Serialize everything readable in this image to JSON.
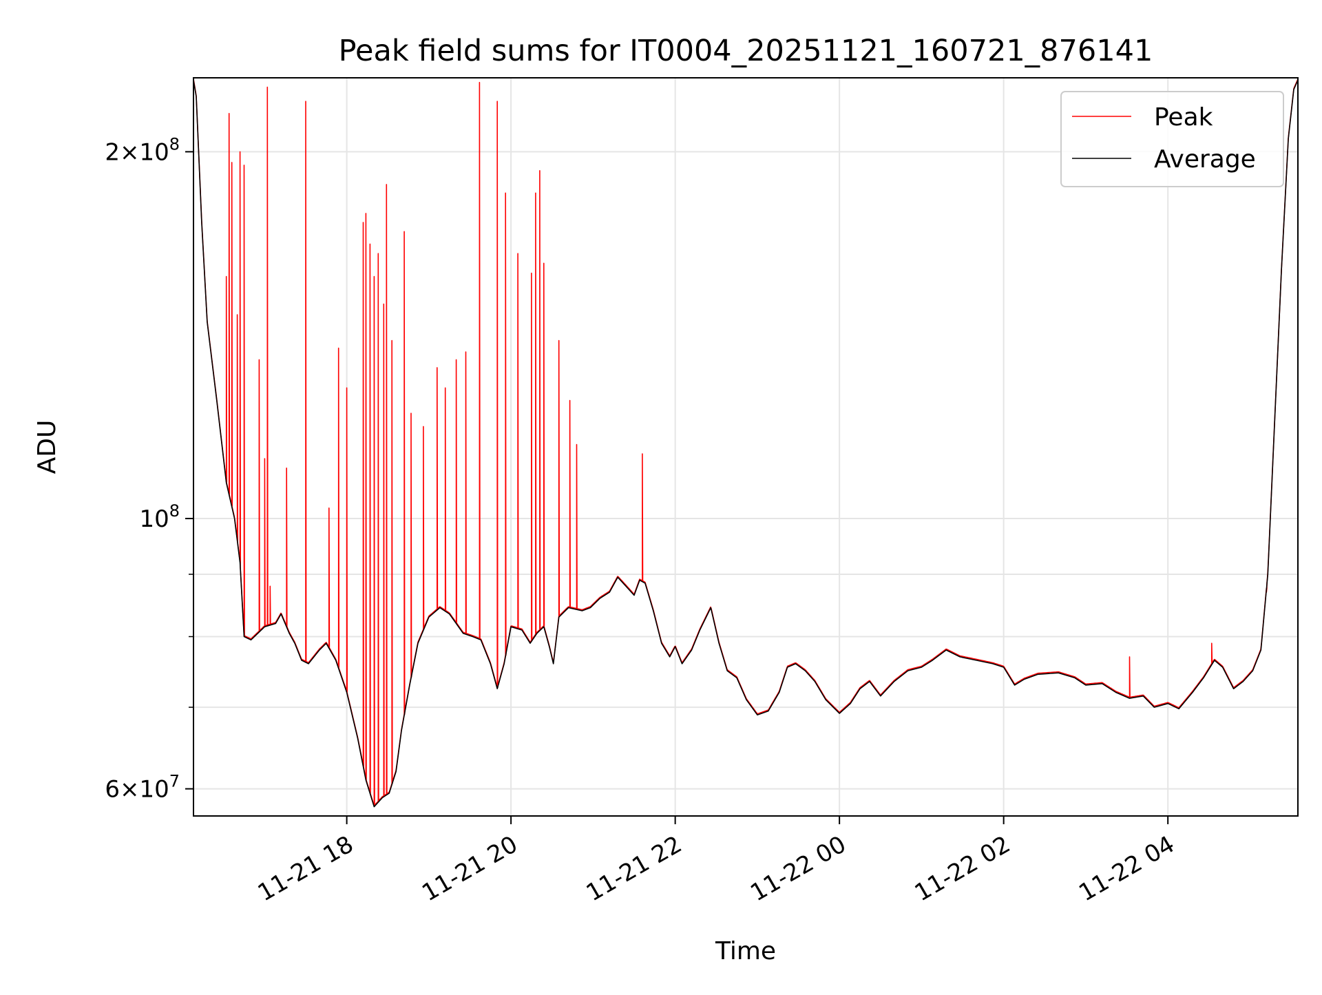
{
  "chart_data": {
    "type": "line",
    "title": "Peak field sums for IT0004_20251121_160721_876141",
    "xlabel": "Time",
    "ylabel": "ADU",
    "yscale": "log",
    "grid": true,
    "legend": {
      "placement": "top-right"
    },
    "x_range": [
      "2025-11-21 16:08",
      "2025-11-22 05:35"
    ],
    "ylim": [
      57000000,
      230000000
    ],
    "x_ticks": [
      {
        "label": "11-21 18",
        "value": "2025-11-21 18:00"
      },
      {
        "label": "11-21 20",
        "value": "2025-11-21 20:00"
      },
      {
        "label": "11-21 22",
        "value": "2025-11-21 22:00"
      },
      {
        "label": "11-22 00",
        "value": "2025-11-22 00:00"
      },
      {
        "label": "11-22 02",
        "value": "2025-11-22 02:00"
      },
      {
        "label": "11-22 04",
        "value": "2025-11-22 04:00"
      }
    ],
    "y_ticks": [
      {
        "value": 200000000,
        "mant": "2",
        "exp": "8"
      },
      {
        "value": 100000000,
        "mant": "",
        "exp": "8"
      },
      {
        "value": 60000000,
        "mant": "6",
        "exp": "7"
      }
    ],
    "y_minor_gridlines": [
      70000000,
      80000000,
      90000000
    ],
    "series": [
      {
        "name": "Peak",
        "color": "#ff0000",
        "spikes": [
          [
            "2025-11-21 16:32",
            158000000
          ],
          [
            "2025-11-21 16:34",
            215000000
          ],
          [
            "2025-11-21 16:36",
            196000000
          ],
          [
            "2025-11-21 16:40",
            147000000
          ],
          [
            "2025-11-21 16:42",
            200000000
          ],
          [
            "2025-11-21 16:45",
            195000000
          ],
          [
            "2025-11-21 16:56",
            135000000
          ],
          [
            "2025-11-21 17:00",
            112000000
          ],
          [
            "2025-11-21 17:02",
            226000000
          ],
          [
            "2025-11-21 17:04",
            88000000
          ],
          [
            "2025-11-21 17:16",
            110000000
          ],
          [
            "2025-11-21 17:30",
            220000000
          ],
          [
            "2025-11-21 17:47",
            102000000
          ],
          [
            "2025-11-21 17:54",
            138000000
          ],
          [
            "2025-11-21 18:00",
            128000000
          ],
          [
            "2025-11-21 18:12",
            175000000
          ],
          [
            "2025-11-21 18:14",
            178000000
          ],
          [
            "2025-11-21 18:17",
            168000000
          ],
          [
            "2025-11-21 18:20",
            158000000
          ],
          [
            "2025-11-21 18:23",
            165000000
          ],
          [
            "2025-11-21 18:27",
            150000000
          ],
          [
            "2025-11-21 18:29",
            188000000
          ],
          [
            "2025-11-21 18:33",
            140000000
          ],
          [
            "2025-11-21 18:42",
            172000000
          ],
          [
            "2025-11-21 18:47",
            122000000
          ],
          [
            "2025-11-21 18:56",
            119000000
          ],
          [
            "2025-11-21 19:06",
            133000000
          ],
          [
            "2025-11-21 19:12",
            128000000
          ],
          [
            "2025-11-21 19:20",
            135000000
          ],
          [
            "2025-11-21 19:27",
            137000000
          ],
          [
            "2025-11-21 19:37",
            228000000
          ],
          [
            "2025-11-21 19:50",
            220000000
          ],
          [
            "2025-11-21 19:56",
            185000000
          ],
          [
            "2025-11-21 20:05",
            165000000
          ],
          [
            "2025-11-21 20:15",
            159000000
          ],
          [
            "2025-11-21 20:18",
            185000000
          ],
          [
            "2025-11-21 20:21",
            193000000
          ],
          [
            "2025-11-21 20:24",
            162000000
          ],
          [
            "2025-11-21 20:35",
            140000000
          ],
          [
            "2025-11-21 20:43",
            125000000
          ],
          [
            "2025-11-21 20:48",
            115000000
          ],
          [
            "2025-11-21 21:36",
            113000000
          ],
          [
            "2025-11-22 03:32",
            77000000
          ],
          [
            "2025-11-22 04:32",
            79000000
          ],
          [
            "2025-11-22 05:12",
            87000000
          ]
        ]
      },
      {
        "name": "Average",
        "color": "#000000",
        "points": [
          [
            "2025-11-21 16:08",
            229000000
          ],
          [
            "2025-11-21 16:10",
            222000000
          ],
          [
            "2025-11-21 16:14",
            175000000
          ],
          [
            "2025-11-21 16:18",
            145000000
          ],
          [
            "2025-11-21 16:25",
            125000000
          ],
          [
            "2025-11-21 16:32",
            107000000
          ],
          [
            "2025-11-21 16:38",
            100000000
          ],
          [
            "2025-11-21 16:42",
            92000000
          ],
          [
            "2025-11-21 16:45",
            80000000
          ],
          [
            "2025-11-21 16:50",
            79500000
          ],
          [
            "2025-11-21 17:00",
            81500000
          ],
          [
            "2025-11-21 17:08",
            82000000
          ],
          [
            "2025-11-21 17:12",
            83500000
          ],
          [
            "2025-11-21 17:18",
            80500000
          ],
          [
            "2025-11-21 17:22",
            79000000
          ],
          [
            "2025-11-21 17:27",
            76500000
          ],
          [
            "2025-11-21 17:32",
            76000000
          ],
          [
            "2025-11-21 17:40",
            78000000
          ],
          [
            "2025-11-21 17:45",
            79000000
          ],
          [
            "2025-11-21 17:52",
            76500000
          ],
          [
            "2025-11-21 18:00",
            72000000
          ],
          [
            "2025-11-21 18:08",
            66000000
          ],
          [
            "2025-11-21 18:14",
            61000000
          ],
          [
            "2025-11-21 18:20",
            58000000
          ],
          [
            "2025-11-21 18:26",
            59000000
          ],
          [
            "2025-11-21 18:31",
            59500000
          ],
          [
            "2025-11-21 18:36",
            62000000
          ],
          [
            "2025-11-21 18:40",
            67000000
          ],
          [
            "2025-11-21 18:46",
            73000000
          ],
          [
            "2025-11-21 18:52",
            79000000
          ],
          [
            "2025-11-21 19:00",
            83000000
          ],
          [
            "2025-11-21 19:08",
            84500000
          ],
          [
            "2025-11-21 19:15",
            83500000
          ],
          [
            "2025-11-21 19:20",
            82000000
          ],
          [
            "2025-11-21 19:25",
            80500000
          ],
          [
            "2025-11-21 19:32",
            80000000
          ],
          [
            "2025-11-21 19:38",
            79500000
          ],
          [
            "2025-11-21 19:45",
            76000000
          ],
          [
            "2025-11-21 19:50",
            72500000
          ],
          [
            "2025-11-21 19:55",
            76000000
          ],
          [
            "2025-11-21 20:00",
            81500000
          ],
          [
            "2025-11-21 20:08",
            81000000
          ],
          [
            "2025-11-21 20:14",
            79000000
          ],
          [
            "2025-11-21 20:19",
            80500000
          ],
          [
            "2025-11-21 20:24",
            81500000
          ],
          [
            "2025-11-21 20:28",
            78500000
          ],
          [
            "2025-11-21 20:31",
            76000000
          ],
          [
            "2025-11-21 20:35",
            83000000
          ],
          [
            "2025-11-21 20:42",
            84500000
          ],
          [
            "2025-11-21 20:52",
            84000000
          ],
          [
            "2025-11-21 20:58",
            84500000
          ],
          [
            "2025-11-21 21:05",
            86000000
          ],
          [
            "2025-11-21 21:12",
            87000000
          ],
          [
            "2025-11-21 21:18",
            89500000
          ],
          [
            "2025-11-21 21:24",
            88000000
          ],
          [
            "2025-11-21 21:30",
            86500000
          ],
          [
            "2025-11-21 21:34",
            89000000
          ],
          [
            "2025-11-21 21:38",
            88500000
          ],
          [
            "2025-11-21 21:44",
            84000000
          ],
          [
            "2025-11-21 21:50",
            79000000
          ],
          [
            "2025-11-21 21:56",
            77000000
          ],
          [
            "2025-11-21 22:00",
            78500000
          ],
          [
            "2025-11-21 22:05",
            76000000
          ],
          [
            "2025-11-21 22:12",
            78000000
          ],
          [
            "2025-11-21 22:18",
            81000000
          ],
          [
            "2025-11-21 22:26",
            84500000
          ],
          [
            "2025-11-21 22:32",
            79000000
          ],
          [
            "2025-11-21 22:38",
            75000000
          ],
          [
            "2025-11-21 22:45",
            74000000
          ],
          [
            "2025-11-21 22:52",
            71000000
          ],
          [
            "2025-11-21 23:00",
            69000000
          ],
          [
            "2025-11-21 23:08",
            69500000
          ],
          [
            "2025-11-21 23:16",
            72000000
          ],
          [
            "2025-11-21 23:22",
            75500000
          ],
          [
            "2025-11-21 23:28",
            76000000
          ],
          [
            "2025-11-21 23:35",
            75000000
          ],
          [
            "2025-11-21 23:42",
            73500000
          ],
          [
            "2025-11-21 23:50",
            71000000
          ],
          [
            "2025-11-22 00:00",
            69200000
          ],
          [
            "2025-11-22 00:08",
            70500000
          ],
          [
            "2025-11-22 00:15",
            72500000
          ],
          [
            "2025-11-22 00:22",
            73500000
          ],
          [
            "2025-11-22 00:30",
            71500000
          ],
          [
            "2025-11-22 00:40",
            73500000
          ],
          [
            "2025-11-22 00:50",
            75000000
          ],
          [
            "2025-11-22 01:00",
            75500000
          ],
          [
            "2025-11-22 01:08",
            76500000
          ],
          [
            "2025-11-22 01:18",
            78000000
          ],
          [
            "2025-11-22 01:28",
            77000000
          ],
          [
            "2025-11-22 01:40",
            76500000
          ],
          [
            "2025-11-22 01:52",
            76000000
          ],
          [
            "2025-11-22 02:00",
            75500000
          ],
          [
            "2025-11-22 02:08",
            73000000
          ],
          [
            "2025-11-22 02:15",
            73800000
          ],
          [
            "2025-11-22 02:25",
            74500000
          ],
          [
            "2025-11-22 02:40",
            74700000
          ],
          [
            "2025-11-22 02:52",
            74000000
          ],
          [
            "2025-11-22 03:00",
            73000000
          ],
          [
            "2025-11-22 03:12",
            73200000
          ],
          [
            "2025-11-22 03:22",
            72000000
          ],
          [
            "2025-11-22 03:32",
            71200000
          ],
          [
            "2025-11-22 03:42",
            71500000
          ],
          [
            "2025-11-22 03:50",
            70000000
          ],
          [
            "2025-11-22 04:00",
            70500000
          ],
          [
            "2025-11-22 04:08",
            69800000
          ],
          [
            "2025-11-22 04:18",
            72000000
          ],
          [
            "2025-11-22 04:26",
            74000000
          ],
          [
            "2025-11-22 04:34",
            76500000
          ],
          [
            "2025-11-22 04:40",
            75500000
          ],
          [
            "2025-11-22 04:48",
            72500000
          ],
          [
            "2025-11-22 04:55",
            73500000
          ],
          [
            "2025-11-22 05:02",
            75000000
          ],
          [
            "2025-11-22 05:08",
            78000000
          ],
          [
            "2025-11-22 05:13",
            90000000
          ],
          [
            "2025-11-22 05:18",
            120000000
          ],
          [
            "2025-11-22 05:23",
            160000000
          ],
          [
            "2025-11-22 05:28",
            205000000
          ],
          [
            "2025-11-22 05:32",
            225000000
          ],
          [
            "2025-11-22 05:35",
            229000000
          ]
        ]
      }
    ]
  }
}
